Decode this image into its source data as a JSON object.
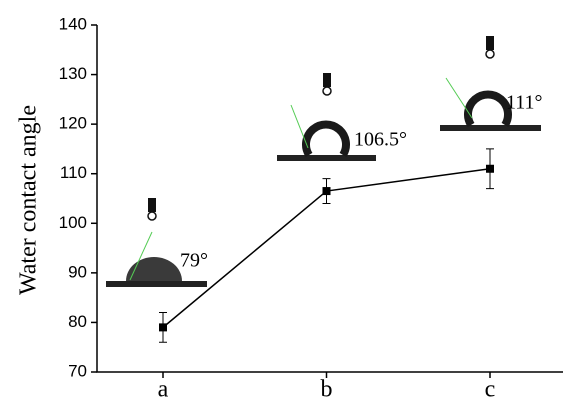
{
  "chart_data": {
    "type": "line",
    "y_label": "Water contact angle",
    "categories": [
      "a",
      "b",
      "c"
    ],
    "series": [
      {
        "color": "#000000",
        "values": [
          79,
          106.5,
          111
        ],
        "errors": [
          3,
          2.5,
          4
        ],
        "value_labels": [
          "79°",
          "106.5°",
          "111°"
        ]
      }
    ],
    "ylim": [
      70,
      140
    ],
    "yticks": [
      70,
      80,
      90,
      100,
      110,
      120,
      130,
      140
    ]
  }
}
